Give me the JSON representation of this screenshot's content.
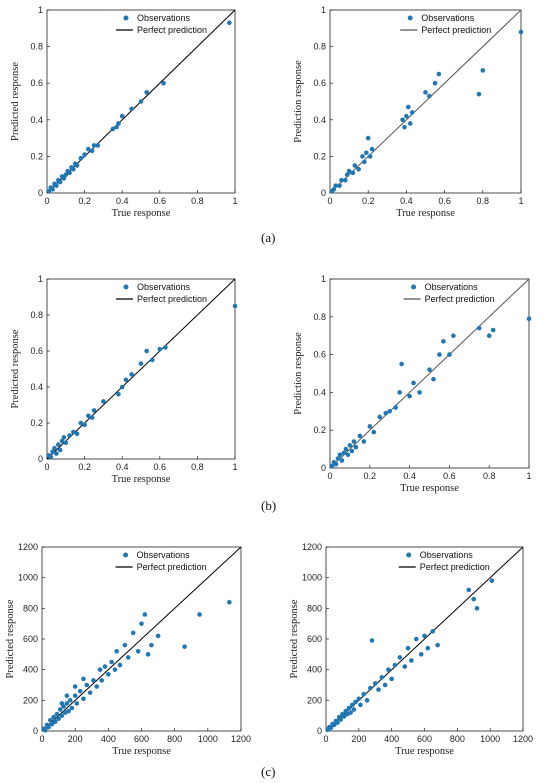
{
  "chart_data": [
    {
      "id": "a-left",
      "type": "scatter",
      "xlabel": "True response",
      "ylabel": "Predicted response",
      "xlim": [
        0,
        1
      ],
      "ylim": [
        0,
        1
      ],
      "xticks": [
        "0",
        "0.2",
        "0.4",
        "0.6",
        "0.8",
        "1"
      ],
      "yticks": [
        "0",
        "0.2",
        "0.4",
        "0.6",
        "0.8",
        "1"
      ],
      "grid": false,
      "legend": "top-right",
      "series": [
        {
          "name": "Observations",
          "kind": "points",
          "color": "#1f77b4",
          "points": [
            [
              0.01,
              0.01
            ],
            [
              0.02,
              0.03
            ],
            [
              0.03,
              0.02
            ],
            [
              0.04,
              0.05
            ],
            [
              0.05,
              0.04
            ],
            [
              0.06,
              0.07
            ],
            [
              0.07,
              0.06
            ],
            [
              0.08,
              0.09
            ],
            [
              0.09,
              0.08
            ],
            [
              0.1,
              0.1
            ],
            [
              0.11,
              0.12
            ],
            [
              0.12,
              0.11
            ],
            [
              0.13,
              0.14
            ],
            [
              0.14,
              0.13
            ],
            [
              0.15,
              0.16
            ],
            [
              0.16,
              0.15
            ],
            [
              0.18,
              0.19
            ],
            [
              0.2,
              0.21
            ],
            [
              0.22,
              0.24
            ],
            [
              0.24,
              0.23
            ],
            [
              0.25,
              0.26
            ],
            [
              0.27,
              0.26
            ],
            [
              0.35,
              0.35
            ],
            [
              0.37,
              0.36
            ],
            [
              0.38,
              0.38
            ],
            [
              0.4,
              0.42
            ],
            [
              0.45,
              0.46
            ],
            [
              0.5,
              0.5
            ],
            [
              0.53,
              0.55
            ],
            [
              0.62,
              0.6
            ],
            [
              0.97,
              0.93
            ]
          ]
        },
        {
          "name": "Perfect prediction",
          "kind": "line",
          "color": "#000000"
        }
      ]
    },
    {
      "id": "a-right",
      "type": "scatter",
      "xlabel": "True response",
      "ylabel": "Prediction response",
      "xlim": [
        0,
        1
      ],
      "ylim": [
        0,
        1
      ],
      "xticks": [
        "0",
        "0.2",
        "0.4",
        "0.6",
        "0.8",
        "1"
      ],
      "yticks": [
        "0",
        "0.2",
        "0.4",
        "0.6",
        "0.8",
        "1"
      ],
      "grid": false,
      "legend": "top-right",
      "series": [
        {
          "name": "Observations",
          "kind": "points",
          "color": "#1f77b4",
          "points": [
            [
              0.01,
              0.01
            ],
            [
              0.02,
              0.02
            ],
            [
              0.03,
              0.04
            ],
            [
              0.05,
              0.04
            ],
            [
              0.06,
              0.07
            ],
            [
              0.08,
              0.07
            ],
            [
              0.09,
              0.1
            ],
            [
              0.1,
              0.12
            ],
            [
              0.12,
              0.11
            ],
            [
              0.13,
              0.15
            ],
            [
              0.15,
              0.13
            ],
            [
              0.17,
              0.2
            ],
            [
              0.18,
              0.17
            ],
            [
              0.19,
              0.22
            ],
            [
              0.2,
              0.3
            ],
            [
              0.21,
              0.2
            ],
            [
              0.22,
              0.24
            ],
            [
              0.38,
              0.4
            ],
            [
              0.39,
              0.36
            ],
            [
              0.4,
              0.42
            ],
            [
              0.41,
              0.47
            ],
            [
              0.42,
              0.38
            ],
            [
              0.43,
              0.44
            ],
            [
              0.5,
              0.55
            ],
            [
              0.52,
              0.53
            ],
            [
              0.55,
              0.6
            ],
            [
              0.57,
              0.65
            ],
            [
              0.78,
              0.54
            ],
            [
              0.8,
              0.67
            ],
            [
              1.0,
              0.88
            ]
          ]
        },
        {
          "name": "Perfect prediction",
          "kind": "line",
          "color": "#555555"
        }
      ]
    },
    {
      "id": "b-left",
      "type": "scatter",
      "xlabel": "True response",
      "ylabel": "Predicted response",
      "xlim": [
        0,
        1
      ],
      "ylim": [
        0,
        1
      ],
      "xticks": [
        "0",
        "0.2",
        "0.4",
        "0.6",
        "0.8",
        "1"
      ],
      "yticks": [
        "0",
        "0.2",
        "0.4",
        "0.6",
        "0.8",
        "1"
      ],
      "grid": false,
      "legend": "top-right",
      "series": [
        {
          "name": "Observations",
          "kind": "points",
          "color": "#1f77b4",
          "points": [
            [
              0.01,
              0.02
            ],
            [
              0.02,
              0.01
            ],
            [
              0.03,
              0.04
            ],
            [
              0.04,
              0.06
            ],
            [
              0.05,
              0.03
            ],
            [
              0.06,
              0.08
            ],
            [
              0.07,
              0.05
            ],
            [
              0.08,
              0.1
            ],
            [
              0.09,
              0.12
            ],
            [
              0.1,
              0.09
            ],
            [
              0.12,
              0.13
            ],
            [
              0.14,
              0.15
            ],
            [
              0.16,
              0.14
            ],
            [
              0.18,
              0.2
            ],
            [
              0.2,
              0.19
            ],
            [
              0.22,
              0.24
            ],
            [
              0.24,
              0.23
            ],
            [
              0.25,
              0.27
            ],
            [
              0.3,
              0.32
            ],
            [
              0.38,
              0.36
            ],
            [
              0.4,
              0.4
            ],
            [
              0.42,
              0.44
            ],
            [
              0.45,
              0.47
            ],
            [
              0.5,
              0.53
            ],
            [
              0.53,
              0.6
            ],
            [
              0.56,
              0.55
            ],
            [
              0.6,
              0.61
            ],
            [
              0.63,
              0.62
            ],
            [
              1.0,
              0.85
            ]
          ]
        },
        {
          "name": "Perfect prediction",
          "kind": "line",
          "color": "#000000"
        }
      ]
    },
    {
      "id": "b-right",
      "type": "scatter",
      "xlabel": "True response",
      "ylabel": "Prediction response",
      "xlim": [
        0,
        1
      ],
      "ylim": [
        0,
        1
      ],
      "xticks": [
        "0",
        "0.2",
        "0.4",
        "0.6",
        "0.8",
        "1"
      ],
      "yticks": [
        "0",
        "0.2",
        "0.4",
        "0.6",
        "0.8",
        "1"
      ],
      "grid": false,
      "legend": "top-right",
      "series": [
        {
          "name": "Observations",
          "kind": "points",
          "color": "#1f77b4",
          "points": [
            [
              0.01,
              0.01
            ],
            [
              0.02,
              0.03
            ],
            [
              0.03,
              0.02
            ],
            [
              0.04,
              0.05
            ],
            [
              0.05,
              0.07
            ],
            [
              0.06,
              0.04
            ],
            [
              0.07,
              0.08
            ],
            [
              0.08,
              0.1
            ],
            [
              0.09,
              0.07
            ],
            [
              0.1,
              0.12
            ],
            [
              0.11,
              0.09
            ],
            [
              0.12,
              0.14
            ],
            [
              0.13,
              0.11
            ],
            [
              0.15,
              0.17
            ],
            [
              0.17,
              0.14
            ],
            [
              0.2,
              0.22
            ],
            [
              0.22,
              0.19
            ],
            [
              0.25,
              0.27
            ],
            [
              0.28,
              0.29
            ],
            [
              0.3,
              0.3
            ],
            [
              0.33,
              0.32
            ],
            [
              0.35,
              0.4
            ],
            [
              0.36,
              0.55
            ],
            [
              0.4,
              0.38
            ],
            [
              0.42,
              0.45
            ],
            [
              0.45,
              0.4
            ],
            [
              0.5,
              0.52
            ],
            [
              0.52,
              0.47
            ],
            [
              0.55,
              0.6
            ],
            [
              0.57,
              0.67
            ],
            [
              0.6,
              0.6
            ],
            [
              0.62,
              0.7
            ],
            [
              0.75,
              0.74
            ],
            [
              0.8,
              0.7
            ],
            [
              0.82,
              0.73
            ],
            [
              1.0,
              0.79
            ]
          ]
        },
        {
          "name": "Perfect prediction",
          "kind": "line",
          "color": "#555555"
        }
      ]
    },
    {
      "id": "c-left",
      "type": "scatter",
      "xlabel": "True response",
      "ylabel": "Predicted response",
      "xlim": [
        0,
        1200
      ],
      "ylim": [
        0,
        1200
      ],
      "xticks": [
        "0",
        "200",
        "400",
        "600",
        "800",
        "1000",
        "1200"
      ],
      "yticks": [
        "0",
        "200",
        "400",
        "600",
        "800",
        "1000",
        "1200"
      ],
      "grid": false,
      "legend": "top-right",
      "series": [
        {
          "name": "Observations",
          "kind": "points",
          "color": "#1f77b4",
          "points": [
            [
              10,
              15
            ],
            [
              20,
              5
            ],
            [
              30,
              40
            ],
            [
              40,
              25
            ],
            [
              50,
              70
            ],
            [
              60,
              45
            ],
            [
              70,
              90
            ],
            [
              80,
              60
            ],
            [
              90,
              110
            ],
            [
              100,
              80
            ],
            [
              110,
              140
            ],
            [
              120,
              100
            ],
            [
              130,
              160
            ],
            [
              140,
              120
            ],
            [
              150,
              180
            ],
            [
              160,
              130
            ],
            [
              170,
              200
            ],
            [
              180,
              150
            ],
            [
              200,
              230
            ],
            [
              210,
              180
            ],
            [
              230,
              260
            ],
            [
              250,
              210
            ],
            [
              270,
              300
            ],
            [
              290,
              250
            ],
            [
              310,
              330
            ],
            [
              330,
              290
            ],
            [
              350,
              400
            ],
            [
              360,
              330
            ],
            [
              380,
              420
            ],
            [
              400,
              370
            ],
            [
              420,
              450
            ],
            [
              440,
              400
            ],
            [
              450,
              520
            ],
            [
              470,
              430
            ],
            [
              500,
              560
            ],
            [
              520,
              480
            ],
            [
              550,
              640
            ],
            [
              580,
              520
            ],
            [
              600,
              700
            ],
            [
              620,
              760
            ],
            [
              640,
              500
            ],
            [
              660,
              560
            ],
            [
              700,
              620
            ],
            [
              860,
              550
            ],
            [
              950,
              760
            ],
            [
              1130,
              840
            ],
            [
              120,
              180
            ],
            [
              150,
              230
            ],
            [
              200,
              290
            ],
            [
              250,
              340
            ]
          ]
        },
        {
          "name": "Perfect prediction",
          "kind": "line",
          "color": "#000000"
        }
      ]
    },
    {
      "id": "c-right",
      "type": "scatter",
      "xlabel": "True response",
      "ylabel": "Predicted response",
      "xlim": [
        0,
        1200
      ],
      "ylim": [
        0,
        1200
      ],
      "xticks": [
        "0",
        "200",
        "400",
        "600",
        "800",
        "1000",
        "1200"
      ],
      "yticks": [
        "0",
        "200",
        "400",
        "600",
        "800",
        "1000",
        "1200"
      ],
      "grid": false,
      "legend": "top-right",
      "series": [
        {
          "name": "Observations",
          "kind": "points",
          "color": "#1f77b4",
          "points": [
            [
              10,
              8
            ],
            [
              20,
              25
            ],
            [
              30,
              20
            ],
            [
              40,
              45
            ],
            [
              50,
              40
            ],
            [
              60,
              65
            ],
            [
              70,
              55
            ],
            [
              80,
              90
            ],
            [
              90,
              75
            ],
            [
              100,
              110
            ],
            [
              110,
              95
            ],
            [
              120,
              130
            ],
            [
              130,
              110
            ],
            [
              140,
              150
            ],
            [
              150,
              120
            ],
            [
              160,
              170
            ],
            [
              170,
              140
            ],
            [
              180,
              190
            ],
            [
              200,
              210
            ],
            [
              210,
              170
            ],
            [
              230,
              240
            ],
            [
              250,
              200
            ],
            [
              270,
              280
            ],
            [
              280,
              590
            ],
            [
              300,
              310
            ],
            [
              320,
              270
            ],
            [
              340,
              350
            ],
            [
              360,
              300
            ],
            [
              380,
              400
            ],
            [
              400,
              340
            ],
            [
              420,
              430
            ],
            [
              450,
              480
            ],
            [
              480,
              420
            ],
            [
              500,
              540
            ],
            [
              520,
              460
            ],
            [
              550,
              600
            ],
            [
              580,
              500
            ],
            [
              600,
              620
            ],
            [
              620,
              540
            ],
            [
              650,
              650
            ],
            [
              680,
              560
            ],
            [
              870,
              920
            ],
            [
              900,
              860
            ],
            [
              920,
              800
            ],
            [
              1010,
              980
            ]
          ]
        },
        {
          "name": "Perfect prediction",
          "kind": "line",
          "color": "#000000"
        }
      ]
    }
  ],
  "panel_labels": {
    "a": "(a)",
    "b": "(b)",
    "c": "(c)"
  }
}
